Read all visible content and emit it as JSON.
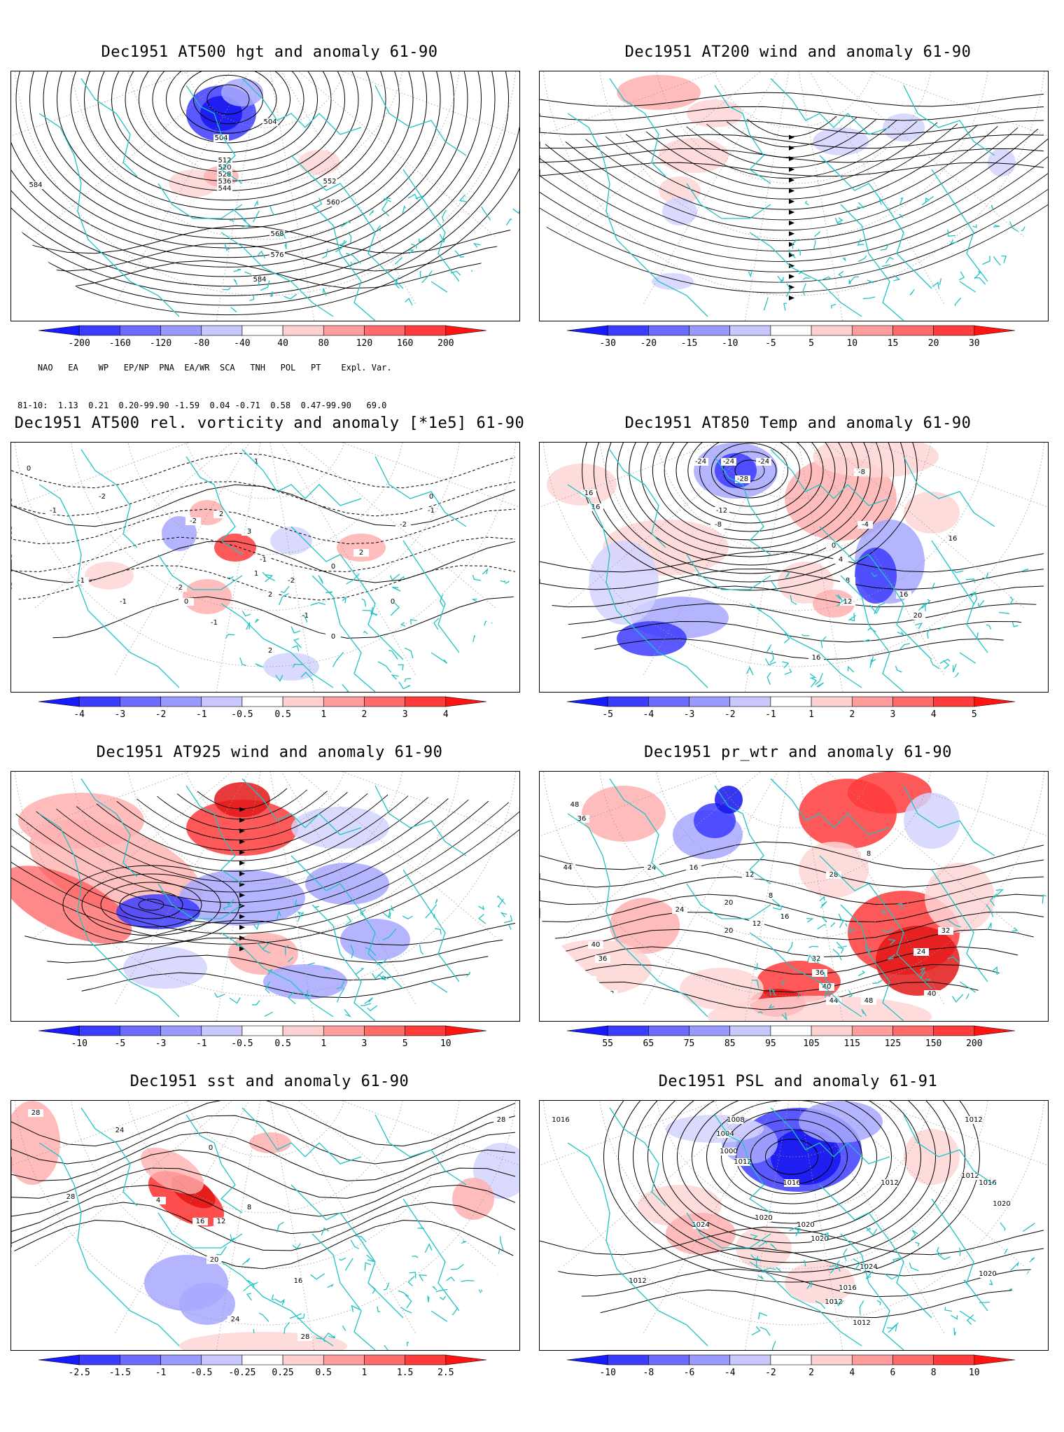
{
  "panels": [
    {
      "title": "Dec1951 AT500 hgt and anomaly 61-90",
      "kind": "height",
      "colorbar": {
        "ticks": [
          "-200",
          "-160",
          "-120",
          "-80",
          "-40",
          "40",
          "80",
          "120",
          "160",
          "200"
        ],
        "colors": [
          "#1a1aff",
          "#3c3cff",
          "#6b6bff",
          "#9999ff",
          "#c8c8ff",
          "#ffffff",
          "#ffd0d0",
          "#ff9d9d",
          "#ff6b6b",
          "#ff3b3b",
          "#ff1414"
        ]
      },
      "contour_labels": [
        "504",
        "504",
        "512",
        "520",
        "528",
        "536",
        "544",
        "552",
        "560",
        "568",
        "576",
        "584",
        "584"
      ]
    },
    {
      "title": "Dec1951 AT200 wind and anomaly 61-90",
      "kind": "stream",
      "colorbar": {
        "ticks": [
          "-30",
          "-20",
          "-15",
          "-10",
          "-5",
          "5",
          "10",
          "15",
          "20",
          "30"
        ],
        "colors": [
          "#1a1aff",
          "#3c3cff",
          "#6b6bff",
          "#9999ff",
          "#c8c8ff",
          "#ffffff",
          "#ffd0d0",
          "#ff9d9d",
          "#ff6b6b",
          "#ff3b3b",
          "#ff1414"
        ]
      },
      "contour_labels": []
    },
    {
      "title": "Dec1951 AT500 rel. vorticity and anomaly [*1e5] 61-90",
      "kind": "vort",
      "colorbar": {
        "ticks": [
          "-4",
          "-3",
          "-2",
          "-1",
          "-0.5",
          "0.5",
          "1",
          "2",
          "3",
          "4"
        ],
        "colors": [
          "#1a1aff",
          "#3c3cff",
          "#6b6bff",
          "#9999ff",
          "#c8c8ff",
          "#ffffff",
          "#ffd0d0",
          "#ff9d9d",
          "#ff6b6b",
          "#ff3b3b",
          "#ff1414"
        ]
      },
      "contour_labels": [
        "0",
        "-1",
        "-2",
        "2",
        "-2",
        "1",
        "3",
        "-1",
        "-2",
        "0",
        "0",
        "-1",
        "2",
        "-2",
        "0",
        "-1",
        "-2",
        "1",
        "2",
        "-1",
        "0",
        "-1",
        "-1",
        "2",
        "0"
      ]
    },
    {
      "title": "Dec1951 AT850 Temp and anomaly 61-90",
      "kind": "temp",
      "colorbar": {
        "ticks": [
          "-5",
          "-4",
          "-3",
          "-2",
          "-1",
          "1",
          "2",
          "3",
          "4",
          "5"
        ],
        "colors": [
          "#1a1aff",
          "#3c3cff",
          "#6b6bff",
          "#9999ff",
          "#c8c8ff",
          "#ffffff",
          "#ffd0d0",
          "#ff9d9d",
          "#ff6b6b",
          "#ff3b3b",
          "#ff1414"
        ]
      },
      "contour_labels": [
        "16",
        "16",
        "-24",
        "-24",
        "-24",
        "-28",
        "-12",
        "-8",
        "-8",
        "-4",
        "0",
        "4",
        "8",
        "12",
        "16",
        "16",
        "20",
        "16"
      ]
    },
    {
      "title": "Dec1951 AT925 wind and anomaly 61-90",
      "kind": "stream2",
      "colorbar": {
        "ticks": [
          "-10",
          "-5",
          "-3",
          "-1",
          "-0.5",
          "0.5",
          "1",
          "3",
          "5",
          "10"
        ],
        "colors": [
          "#1a1aff",
          "#3c3cff",
          "#6b6bff",
          "#9999ff",
          "#c8c8ff",
          "#ffffff",
          "#ffd0d0",
          "#ff9d9d",
          "#ff6b6b",
          "#ff3b3b",
          "#ff1414"
        ]
      },
      "contour_labels": []
    },
    {
      "title": "Dec1951 pr_wtr and anomaly 61-90",
      "kind": "prwtr",
      "colorbar": {
        "ticks": [
          "55",
          "65",
          "75",
          "85",
          "95",
          "105",
          "115",
          "125",
          "150",
          "200"
        ],
        "colors": [
          "#1a1aff",
          "#3c3cff",
          "#6b6bff",
          "#9999ff",
          "#c8c8ff",
          "#ffffff",
          "#ffd0d0",
          "#ff9d9d",
          "#ff6b6b",
          "#ff3b3b",
          "#ff1414"
        ]
      },
      "contour_labels": [
        "48",
        "36",
        "44",
        "24",
        "16",
        "12",
        "8",
        "20",
        "40",
        "36",
        "44",
        "48",
        "24",
        "20",
        "12",
        "16",
        "8",
        "28",
        "32",
        "36",
        "40",
        "44",
        "48",
        "40",
        "24",
        "32"
      ]
    },
    {
      "title": "Dec1951 sst and anomaly 61-90",
      "kind": "sst",
      "colorbar": {
        "ticks": [
          "-2.5",
          "-1.5",
          "-1",
          "-0.5",
          "-0.25",
          "0.25",
          "0.5",
          "1",
          "1.5",
          "2.5"
        ],
        "colors": [
          "#1a1aff",
          "#3c3cff",
          "#6b6bff",
          "#9999ff",
          "#c8c8ff",
          "#ffffff",
          "#ffd0d0",
          "#ff9d9d",
          "#ff6b6b",
          "#ff3b3b",
          "#ff1414"
        ]
      },
      "contour_labels": [
        "28",
        "24",
        "28",
        "0",
        "4",
        "8",
        "12",
        "16",
        "20",
        "24",
        "28",
        "28",
        "16"
      ]
    },
    {
      "title": "Dec1951 PSL and anomaly 61-91",
      "kind": "psl",
      "colorbar": {
        "ticks": [
          "-10",
          "-8",
          "-6",
          "-4",
          "-2",
          "2",
          "4",
          "6",
          "8",
          "10"
        ],
        "colors": [
          "#1a1aff",
          "#3c3cff",
          "#6b6bff",
          "#9999ff",
          "#c8c8ff",
          "#ffffff",
          "#ffd0d0",
          "#ff9d9d",
          "#ff6b6b",
          "#ff3b3b",
          "#ff1414"
        ]
      },
      "contour_labels": [
        "1016",
        "1008",
        "1004",
        "1000",
        "1012",
        "1016",
        "1020",
        "1024",
        "1020",
        "1012",
        "1012",
        "1012",
        "1016",
        "1020",
        "1020",
        "1024",
        "1012",
        "1016",
        "1012",
        "1020",
        "1012"
      ]
    }
  ],
  "indices": {
    "header": "    NAO   EA    WP   EP/NP  PNA  EA/WR  SCA   TNH   POL   PT    Expl. Var.",
    "row": "81-10:  1.13  0.21  0.20-99.90 -1.59  0.04 -0.71  0.58  0.47-99.90   69.0"
  }
}
